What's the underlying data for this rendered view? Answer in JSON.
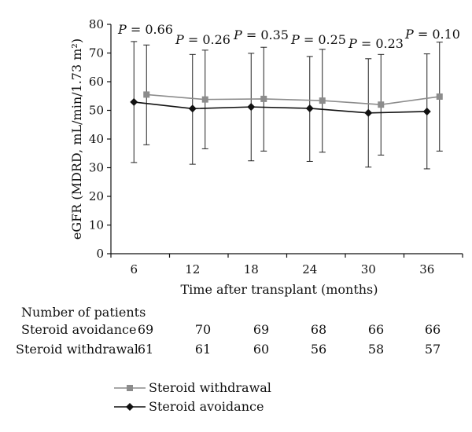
{
  "chart_data": {
    "type": "line",
    "xlabel": "Time after transplant (months)",
    "ylabel": "eGFR (MDRD, mL/min/1.73 m²)",
    "ylim": [
      0,
      80
    ],
    "yticks": [
      0,
      10,
      20,
      30,
      40,
      50,
      60,
      70,
      80
    ],
    "categories": [
      "6",
      "12",
      "18",
      "24",
      "30",
      "36"
    ],
    "series": [
      {
        "name": "Steroid withdrawal",
        "color": "#8c8c8c",
        "marker": "square",
        "values": [
          55.5,
          53.8,
          54.0,
          53.4,
          52.0,
          54.8
        ],
        "error_upper": [
          72.8,
          71.0,
          72.0,
          71.3,
          69.5,
          73.8
        ],
        "error_lower": [
          38.0,
          36.6,
          35.8,
          35.4,
          34.4,
          35.8
        ]
      },
      {
        "name": "Steroid avoidance",
        "color": "#111111",
        "marker": "diamond",
        "values": [
          52.9,
          50.6,
          51.2,
          50.7,
          49.1,
          49.6
        ],
        "error_upper": [
          74.0,
          69.5,
          69.9,
          68.8,
          68.0,
          69.7
        ],
        "error_lower": [
          31.8,
          31.2,
          32.4,
          32.2,
          30.2,
          29.6
        ]
      }
    ],
    "annotations": [
      "= 0.66",
      "= 0.26",
      "= 0.35",
      "= 0.25",
      "= 0.23",
      "= 0.10"
    ],
    "annotation_prefix": "P",
    "legend_position": "bottom-left",
    "grid": false
  },
  "patients_table": {
    "title": "Number of patients",
    "rows": [
      {
        "label": "Steroid avoidance",
        "values": [
          "69",
          "70",
          "69",
          "68",
          "66",
          "66"
        ]
      },
      {
        "label": "Steroid withdrawal",
        "values": [
          "61",
          "61",
          "60",
          "56",
          "58",
          "57"
        ]
      }
    ]
  }
}
